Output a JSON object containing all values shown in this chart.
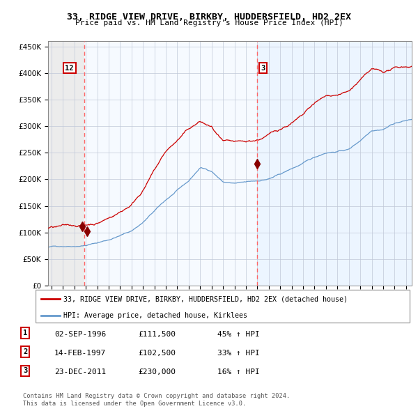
{
  "title": "33, RIDGE VIEW DRIVE, BIRKBY, HUDDERSFIELD, HD2 2EX",
  "subtitle": "Price paid vs. HM Land Registry's House Price Index (HPI)",
  "legend_line1": "33, RIDGE VIEW DRIVE, BIRKBY, HUDDERSFIELD, HD2 2EX (detached house)",
  "legend_line2": "HPI: Average price, detached house, Kirklees",
  "table_rows": [
    [
      "1",
      "02-SEP-1996",
      "£111,500",
      "45% ↑ HPI"
    ],
    [
      "2",
      "14-FEB-1997",
      "£102,500",
      "33% ↑ HPI"
    ],
    [
      "3",
      "23-DEC-2011",
      "£230,000",
      "16% ↑ HPI"
    ]
  ],
  "footnote1": "Contains HM Land Registry data © Crown copyright and database right 2024.",
  "footnote2": "This data is licensed under the Open Government Licence v3.0.",
  "sale1_date": 1996.67,
  "sale2_date": 1997.12,
  "sale3_date": 2011.98,
  "sale1_price": 111500,
  "sale2_price": 102500,
  "sale3_price": 230000,
  "vline1_date": 1996.87,
  "vline2_date": 2011.98,
  "hpi_color": "#6699cc",
  "price_color": "#cc0000",
  "vline_color": "#ff6666",
  "point_color": "#880000",
  "ylim": [
    0,
    460000
  ],
  "xlim_start": 1993.7,
  "xlim_end": 2025.5,
  "hpi_base_points_x": [
    1993.7,
    1994,
    1995,
    1996,
    1997,
    1998,
    1999,
    2000,
    2001,
    2002,
    2003,
    2004,
    2005,
    2006,
    2007,
    2008,
    2009,
    2010,
    2011,
    2012,
    2013,
    2014,
    2015,
    2016,
    2017,
    2018,
    2019,
    2020,
    2021,
    2022,
    2023,
    2024,
    2025.5
  ],
  "hpi_base_points_y": [
    72000,
    73000,
    74500,
    76000,
    78500,
    83000,
    89000,
    97000,
    106000,
    122000,
    143000,
    163000,
    180000,
    197000,
    222000,
    216000,
    196000,
    193000,
    194000,
    196000,
    200000,
    208000,
    218000,
    228000,
    238000,
    248000,
    251000,
    255000,
    272000,
    293000,
    296000,
    308000,
    315000
  ],
  "price_base_points_x": [
    1993.7,
    1994,
    1995,
    1996,
    1997,
    1998,
    1999,
    2000,
    2001,
    2002,
    2003,
    2004,
    2005,
    2006,
    2007,
    2008,
    2009,
    2010,
    2011,
    2012,
    2013,
    2014,
    2015,
    2016,
    2017,
    2018,
    2019,
    2020,
    2021,
    2022,
    2023,
    2024,
    2025.5
  ],
  "price_base_points_y": [
    108000,
    109000,
    109500,
    110000,
    111500,
    116000,
    126000,
    138000,
    153000,
    182000,
    218000,
    252000,
    272000,
    292000,
    305000,
    293000,
    263000,
    257000,
    254000,
    258000,
    267000,
    278000,
    290000,
    302000,
    322000,
    333000,
    337000,
    342000,
    362000,
    378000,
    372000,
    378000,
    383000
  ]
}
